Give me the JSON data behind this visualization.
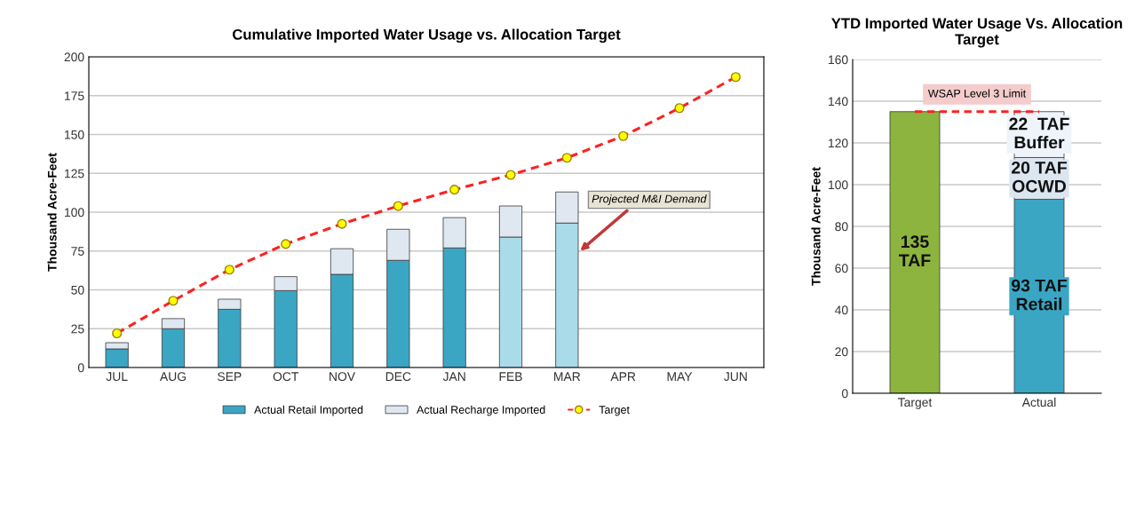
{
  "chart_data": [
    {
      "type": "bar",
      "title": "Cumulative Imported Water Usage vs. Allocation Target",
      "ylabel": "Thousand Acre-Feet",
      "categories": [
        "JUL",
        "AUG",
        "SEP",
        "OCT",
        "NOV",
        "DEC",
        "JAN",
        "FEB",
        "MAR",
        "APR",
        "MAY",
        "JUN"
      ],
      "stacked": true,
      "ylim": [
        0,
        200
      ],
      "yticks": [
        0,
        25,
        50,
        75,
        100,
        125,
        150,
        175,
        200
      ],
      "grid": "y",
      "legend": "bottom",
      "series": [
        {
          "name": "Actual Retail Imported",
          "color": "#3aa6c4",
          "colors": [
            "#3aa6c4",
            "#3aa6c4",
            "#3aa6c4",
            "#3aa6c4",
            "#3aa6c4",
            "#3aa6c4",
            "#3aa6c4",
            "#a9dbe8",
            "#a9dbe8",
            "#3aa6c4",
            "#3aa6c4",
            "#3aa6c4"
          ],
          "values": [
            12,
            25,
            37.5,
            49.5,
            60,
            69,
            77,
            84,
            93,
            null,
            null,
            null
          ]
        },
        {
          "name": "Actual Recharge Imported",
          "color": "#dfe8f1",
          "values": [
            4,
            6.5,
            6.5,
            9,
            16.5,
            20,
            19.5,
            20,
            20,
            null,
            null,
            null
          ]
        },
        {
          "name": "Target",
          "type": "line",
          "color": "#ff2020",
          "marker": "circle",
          "line_style": "dashed",
          "values": [
            22,
            43,
            63,
            79.5,
            92.5,
            104,
            114.5,
            124,
            135,
            149,
            167,
            187
          ]
        }
      ],
      "annotations": [
        "Projected M&I Demand"
      ]
    },
    {
      "type": "bar",
      "title": "YTD Imported Water Usage Vs. Allocation Target",
      "ylabel": "Thousand Acre-Feet",
      "categories": [
        "Target",
        "Actual"
      ],
      "stacked": true,
      "ylim": [
        0,
        160
      ],
      "yticks": [
        0,
        20,
        40,
        60,
        80,
        100,
        120,
        140,
        160
      ],
      "grid": "y",
      "series": [
        {
          "color": "#8db43e",
          "values": [
            135,
            null
          ],
          "value_labels": [
            "135\nTAF",
            null
          ]
        },
        {
          "color": "#3aa6c4",
          "values": [
            null,
            93
          ],
          "value_labels": [
            null,
            "93 TAF\nRetail"
          ]
        },
        {
          "color": "#dce6f0",
          "values": [
            null,
            20
          ],
          "value_labels": [
            null,
            "20 TAF\nOCWD"
          ]
        },
        {
          "color": "#eef4fa",
          "values": [
            null,
            22
          ],
          "value_labels": [
            null,
            "22  TAF\nBuffer"
          ]
        }
      ],
      "ref_lines": [
        {
          "axis": "y",
          "value": 135,
          "label": "WSAP Level 3 Limit",
          "color": "#ff2020",
          "line_style": "dashed"
        }
      ]
    }
  ]
}
